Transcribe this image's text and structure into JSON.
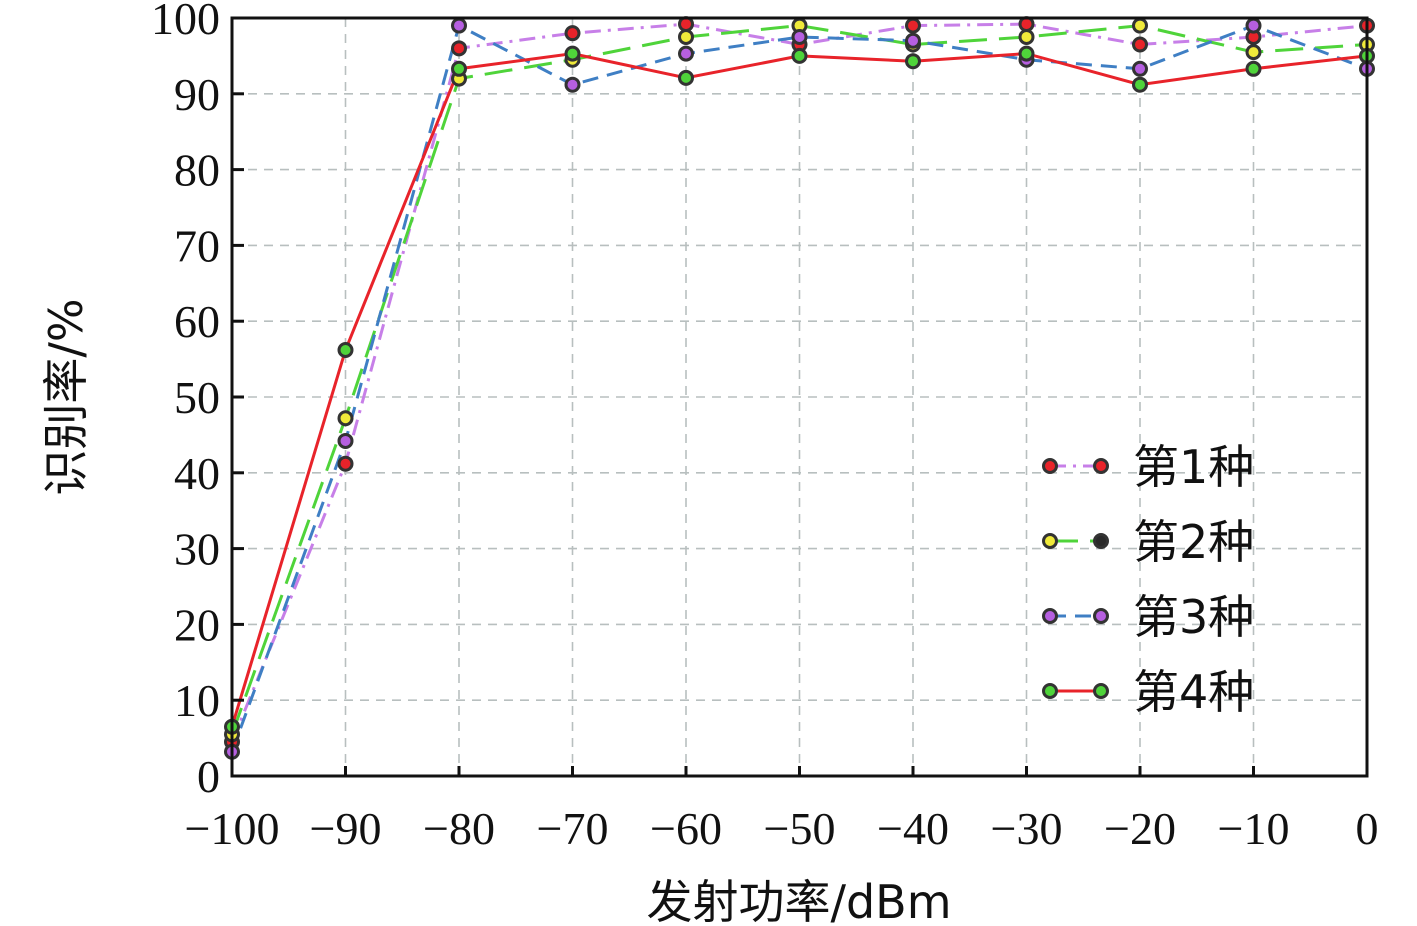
{
  "chart_data": {
    "type": "line",
    "xlabel": "发射功率/dBm",
    "ylabel": "识别率/%",
    "xlim": [
      -100,
      0
    ],
    "ylim": [
      0,
      100
    ],
    "xticks": [
      "−100",
      "−90",
      "−80",
      "−70",
      "−60",
      "−50",
      "−40",
      "−30",
      "−20",
      "−10",
      "0"
    ],
    "yticks": [
      "0",
      "10",
      "20",
      "30",
      "40",
      "50",
      "60",
      "70",
      "80",
      "90",
      "100"
    ],
    "x": [
      -100,
      -90,
      -80,
      -70,
      -60,
      -50,
      -40,
      -30,
      -20,
      -10,
      0
    ],
    "grid": true,
    "legend_position": "right-middle",
    "series": [
      {
        "name": "第1种",
        "color": "#c77fe8",
        "dash": "dash-dot",
        "marker_color": "#e8232a",
        "values": [
          4.5,
          41.2,
          96.0,
          98.0,
          99.2,
          96.5,
          99.0,
          99.2,
          96.5,
          97.5,
          99.0
        ]
      },
      {
        "name": "第2种",
        "color": "#4fd43a",
        "dash": "long-dash",
        "marker_color": "#f0ea3a",
        "values": [
          5.5,
          47.2,
          92.0,
          94.5,
          97.5,
          99.0,
          96.5,
          97.5,
          99.0,
          95.5,
          96.5
        ]
      },
      {
        "name": "第3种",
        "color": "#3f7fc4",
        "dash": "dash",
        "marker_color": "#b65fe0",
        "values": [
          3.2,
          44.2,
          99.0,
          91.2,
          95.3,
          97.5,
          97.0,
          94.5,
          93.3,
          99.0,
          93.3
        ]
      },
      {
        "name": "第4种",
        "color": "#e8232a",
        "dash": "solid",
        "marker_color": "#4fd43a",
        "values": [
          6.5,
          56.2,
          93.3,
          95.3,
          92.1,
          95.0,
          94.3,
          95.3,
          91.2,
          93.3,
          95.0
        ]
      }
    ]
  }
}
